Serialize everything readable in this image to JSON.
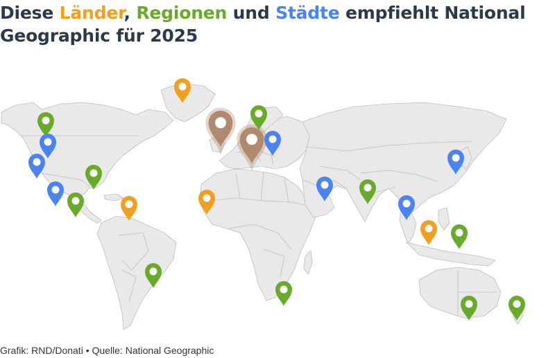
{
  "title": {
    "part1": "Diese ",
    "laender": "Länder",
    "comma": ", ",
    "regionen": "Regionen",
    "und": " und ",
    "staedte": "Städte",
    "part2": " empfiehlt National Geographic für 2025"
  },
  "source": "Grafik: RND/Donati • Quelle: National Geographic",
  "colors": {
    "title_text": "#2b3a4a",
    "laender": "#f0a020",
    "regionen": "#6aaa2a",
    "staedte": "#4a84f0",
    "highlight": "#b08a6e",
    "land": "#e9e9e9",
    "border": "#bdbdbd"
  },
  "legend": {
    "country": "Länder",
    "region": "Regionen",
    "city": "Städte"
  },
  "markers": [
    {
      "id": "greenland",
      "kind": "country",
      "icon": "map-pin-icon"
    },
    {
      "id": "alaska",
      "kind": "region",
      "icon": "map-pin-icon"
    },
    {
      "id": "vancouver",
      "kind": "city",
      "icon": "map-pin-icon"
    },
    {
      "id": "san-francisco",
      "kind": "city",
      "icon": "map-pin-icon"
    },
    {
      "id": "los-angeles",
      "kind": "city",
      "icon": "map-pin-icon"
    },
    {
      "id": "eastern-usa",
      "kind": "region",
      "icon": "map-pin-icon"
    },
    {
      "id": "yucatan",
      "kind": "region",
      "icon": "map-pin-icon"
    },
    {
      "id": "caribbean",
      "kind": "country",
      "icon": "map-pin-icon"
    },
    {
      "id": "brazil",
      "kind": "region",
      "icon": "map-pin-icon"
    },
    {
      "id": "west-africa",
      "kind": "country",
      "icon": "map-pin-icon"
    },
    {
      "id": "britain",
      "kind": "highlight",
      "icon": "map-pin-icon"
    },
    {
      "id": "central-europe",
      "kind": "highlight",
      "icon": "map-pin-icon"
    },
    {
      "id": "scandinavia",
      "kind": "region",
      "icon": "map-pin-icon"
    },
    {
      "id": "eastern-europe",
      "kind": "city",
      "icon": "map-pin-icon"
    },
    {
      "id": "arabia",
      "kind": "city",
      "icon": "map-pin-icon"
    },
    {
      "id": "india",
      "kind": "region",
      "icon": "map-pin-icon"
    },
    {
      "id": "thailand",
      "kind": "city",
      "icon": "map-pin-icon"
    },
    {
      "id": "malaysia",
      "kind": "country",
      "icon": "map-pin-icon"
    },
    {
      "id": "japan",
      "kind": "city",
      "icon": "map-pin-icon"
    },
    {
      "id": "new-guinea",
      "kind": "region",
      "icon": "map-pin-icon"
    },
    {
      "id": "south-africa",
      "kind": "region",
      "icon": "map-pin-icon"
    },
    {
      "id": "australia",
      "kind": "region",
      "icon": "map-pin-icon"
    },
    {
      "id": "new-zealand",
      "kind": "region",
      "icon": "map-pin-icon"
    }
  ]
}
